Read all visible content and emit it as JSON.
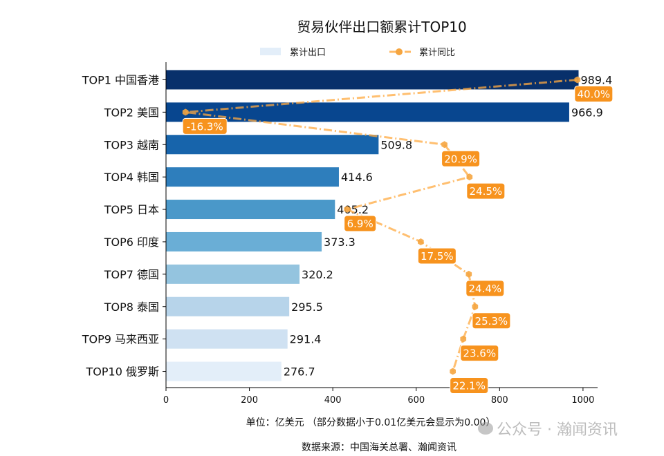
{
  "chart_data": {
    "type": "bar",
    "orientation": "horizontal",
    "title": "贸易伙伴出口额累计TOP10",
    "categories": [
      "TOP1 中国香港",
      "TOP2 美国",
      "TOP3 越南",
      "TOP4 韩国",
      "TOP5 日本",
      "TOP6 印度",
      "TOP7 德国",
      "TOP8 泰国",
      "TOP9 马来西亚",
      "TOP10 俄罗斯"
    ],
    "series": [
      {
        "name": "累计出口",
        "type": "bar",
        "values": [
          989.4,
          966.9,
          509.8,
          414.6,
          405.2,
          373.3,
          320.2,
          295.5,
          291.4,
          276.7
        ],
        "value_labels": [
          "989.4",
          "966.9",
          "509.8",
          "414.6",
          "405.2",
          "373.3",
          "320.2",
          "295.5",
          "291.4",
          "276.7"
        ],
        "colors": [
          "#08306b",
          "#08468f",
          "#1764ab",
          "#2e7ebc",
          "#4a98c9",
          "#6aaed6",
          "#94c4df",
          "#b7d4ea",
          "#cfe1f2",
          "#e3eef9"
        ]
      },
      {
        "name": "累计同比",
        "type": "line",
        "unit": "%",
        "values": [
          40.0,
          -16.3,
          20.9,
          24.5,
          6.9,
          17.5,
          24.4,
          25.3,
          23.6,
          22.1
        ],
        "value_labels": [
          "40.0%",
          "-16.3%",
          "20.9%",
          "24.5%",
          "6.9%",
          "17.5%",
          "24.4%",
          "25.3%",
          "23.6%",
          "22.1%"
        ],
        "color": "#ffa940",
        "label_bg": "#f7931e",
        "line_style": "dash-dot",
        "marker": "hexagon"
      }
    ],
    "xlim": [
      0,
      1035
    ],
    "x_ticks": [
      "0",
      "200",
      "400",
      "600",
      "800",
      "1000"
    ],
    "secondary_xlim": [
      -19.1,
      42.9
    ],
    "xlabel": "单位：亿美元  （部分数据小于0.01亿美元会显示为0.00）",
    "source": "数据来源：中国海关总署、瀚闻资讯",
    "watermark": "公众号 · 瀚闻资讯",
    "legend_placement": "top-center",
    "grid": false
  }
}
